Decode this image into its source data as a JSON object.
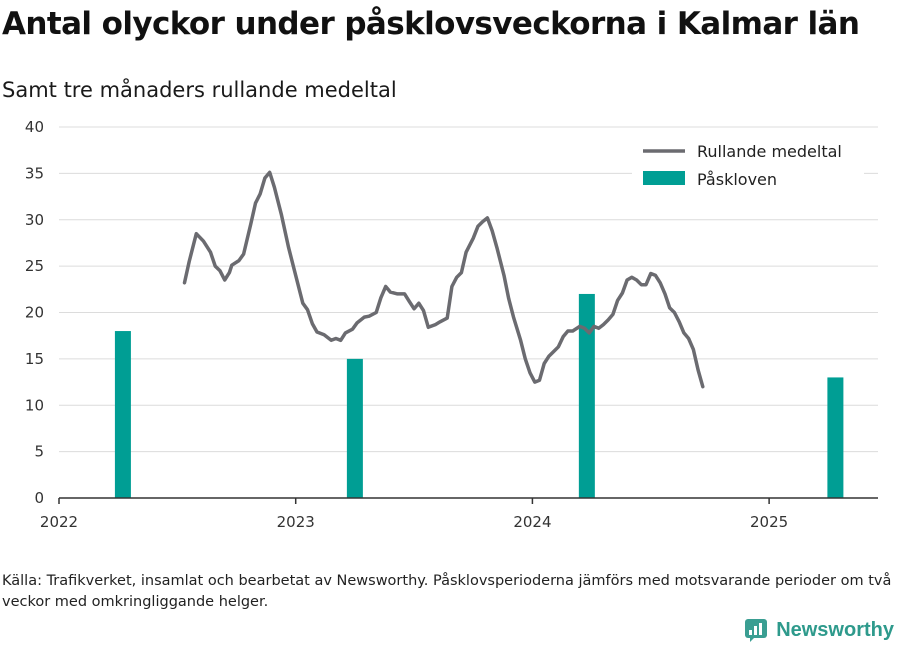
{
  "chart_data": {
    "type": "bar+line",
    "title": "Antal olyckor under påsklovsveckorna i Kalmar län",
    "subtitle": "Samt tre månaders rullande medeltal",
    "ylim": [
      0,
      40
    ],
    "yticks": [
      0,
      5,
      10,
      15,
      20,
      25,
      30,
      35,
      40
    ],
    "xlim": [
      2022.0,
      2025.46
    ],
    "xticks": [
      {
        "value": 2022,
        "label": "2022"
      },
      {
        "value": 2023,
        "label": "2023"
      },
      {
        "value": 2024,
        "label": "2024"
      },
      {
        "value": 2025,
        "label": "2025"
      }
    ],
    "grid": true,
    "legend_position": "top-right",
    "colors": {
      "line": "#6b6b70",
      "bars": "#009e94"
    },
    "bars": {
      "name": "Påskloven",
      "points": [
        {
          "x": 2022.27,
          "y": 18
        },
        {
          "x": 2023.25,
          "y": 15
        },
        {
          "x": 2024.23,
          "y": 22
        },
        {
          "x": 2025.28,
          "y": 13
        }
      ]
    },
    "line": {
      "name": "Rullande medeltal",
      "points": [
        [
          2022.53,
          23.2
        ],
        [
          2022.55,
          25.5
        ],
        [
          2022.58,
          28.5
        ],
        [
          2022.61,
          27.7
        ],
        [
          2022.64,
          26.5
        ],
        [
          2022.66,
          25.0
        ],
        [
          2022.68,
          24.5
        ],
        [
          2022.7,
          23.5
        ],
        [
          2022.72,
          24.3
        ],
        [
          2022.73,
          25.1
        ],
        [
          2022.76,
          25.6
        ],
        [
          2022.78,
          26.3
        ],
        [
          2022.81,
          29.5
        ],
        [
          2022.83,
          31.8
        ],
        [
          2022.85,
          32.8
        ],
        [
          2022.87,
          34.5
        ],
        [
          2022.89,
          35.1
        ],
        [
          2022.91,
          33.5
        ],
        [
          2022.94,
          30.5
        ],
        [
          2022.97,
          27.0
        ],
        [
          2023.0,
          24.0
        ],
        [
          2023.03,
          21.0
        ],
        [
          2023.05,
          20.3
        ],
        [
          2023.07,
          18.8
        ],
        [
          2023.09,
          17.9
        ],
        [
          2023.12,
          17.6
        ],
        [
          2023.15,
          17.0
        ],
        [
          2023.17,
          17.2
        ],
        [
          2023.19,
          17.0
        ],
        [
          2023.21,
          17.8
        ],
        [
          2023.24,
          18.2
        ],
        [
          2023.26,
          18.9
        ],
        [
          2023.29,
          19.5
        ],
        [
          2023.31,
          19.6
        ],
        [
          2023.34,
          20.0
        ],
        [
          2023.36,
          21.6
        ],
        [
          2023.38,
          22.8
        ],
        [
          2023.4,
          22.2
        ],
        [
          2023.43,
          22.0
        ],
        [
          2023.46,
          22.0
        ],
        [
          2023.48,
          21.2
        ],
        [
          2023.5,
          20.4
        ],
        [
          2023.52,
          21.0
        ],
        [
          2023.54,
          20.2
        ],
        [
          2023.56,
          18.4
        ],
        [
          2023.59,
          18.7
        ],
        [
          2023.61,
          19.0
        ],
        [
          2023.64,
          19.4
        ],
        [
          2023.66,
          22.8
        ],
        [
          2023.68,
          23.8
        ],
        [
          2023.7,
          24.3
        ],
        [
          2023.72,
          26.5
        ],
        [
          2023.75,
          28.0
        ],
        [
          2023.77,
          29.3
        ],
        [
          2023.79,
          29.8
        ],
        [
          2023.81,
          30.2
        ],
        [
          2023.83,
          28.8
        ],
        [
          2023.85,
          27.0
        ],
        [
          2023.88,
          24.0
        ],
        [
          2023.9,
          21.5
        ],
        [
          2023.92,
          19.5
        ],
        [
          2023.95,
          17.0
        ],
        [
          2023.97,
          15.0
        ],
        [
          2023.99,
          13.5
        ],
        [
          2024.01,
          12.5
        ],
        [
          2024.03,
          12.7
        ],
        [
          2024.05,
          14.5
        ],
        [
          2024.07,
          15.3
        ],
        [
          2024.09,
          15.8
        ],
        [
          2024.11,
          16.3
        ],
        [
          2024.13,
          17.4
        ],
        [
          2024.15,
          18.0
        ],
        [
          2024.17,
          18.0
        ],
        [
          2024.2,
          18.5
        ],
        [
          2024.22,
          18.3
        ],
        [
          2024.24,
          17.8
        ],
        [
          2024.26,
          18.5
        ],
        [
          2024.28,
          18.3
        ],
        [
          2024.3,
          18.7
        ],
        [
          2024.32,
          19.2
        ],
        [
          2024.34,
          19.8
        ],
        [
          2024.36,
          21.3
        ],
        [
          2024.38,
          22.1
        ],
        [
          2024.4,
          23.5
        ],
        [
          2024.42,
          23.8
        ],
        [
          2024.44,
          23.5
        ],
        [
          2024.46,
          23.0
        ],
        [
          2024.48,
          23.0
        ],
        [
          2024.5,
          24.2
        ],
        [
          2024.52,
          24.0
        ],
        [
          2024.54,
          23.2
        ],
        [
          2024.56,
          22.0
        ],
        [
          2024.58,
          20.5
        ],
        [
          2024.6,
          20.0
        ],
        [
          2024.62,
          19.0
        ],
        [
          2024.64,
          17.8
        ],
        [
          2024.66,
          17.2
        ],
        [
          2024.68,
          16.0
        ],
        [
          2024.7,
          13.8
        ],
        [
          2024.72,
          12.0
        ]
      ]
    }
  },
  "footer": {
    "source": "Källa: Trafikverket, insamlat och bearbetat av Newsworthy. Påsklovsperioderna jämförs med motsvarande perioder om två veckor med omkringliggande helger.",
    "brand": "Newsworthy"
  }
}
